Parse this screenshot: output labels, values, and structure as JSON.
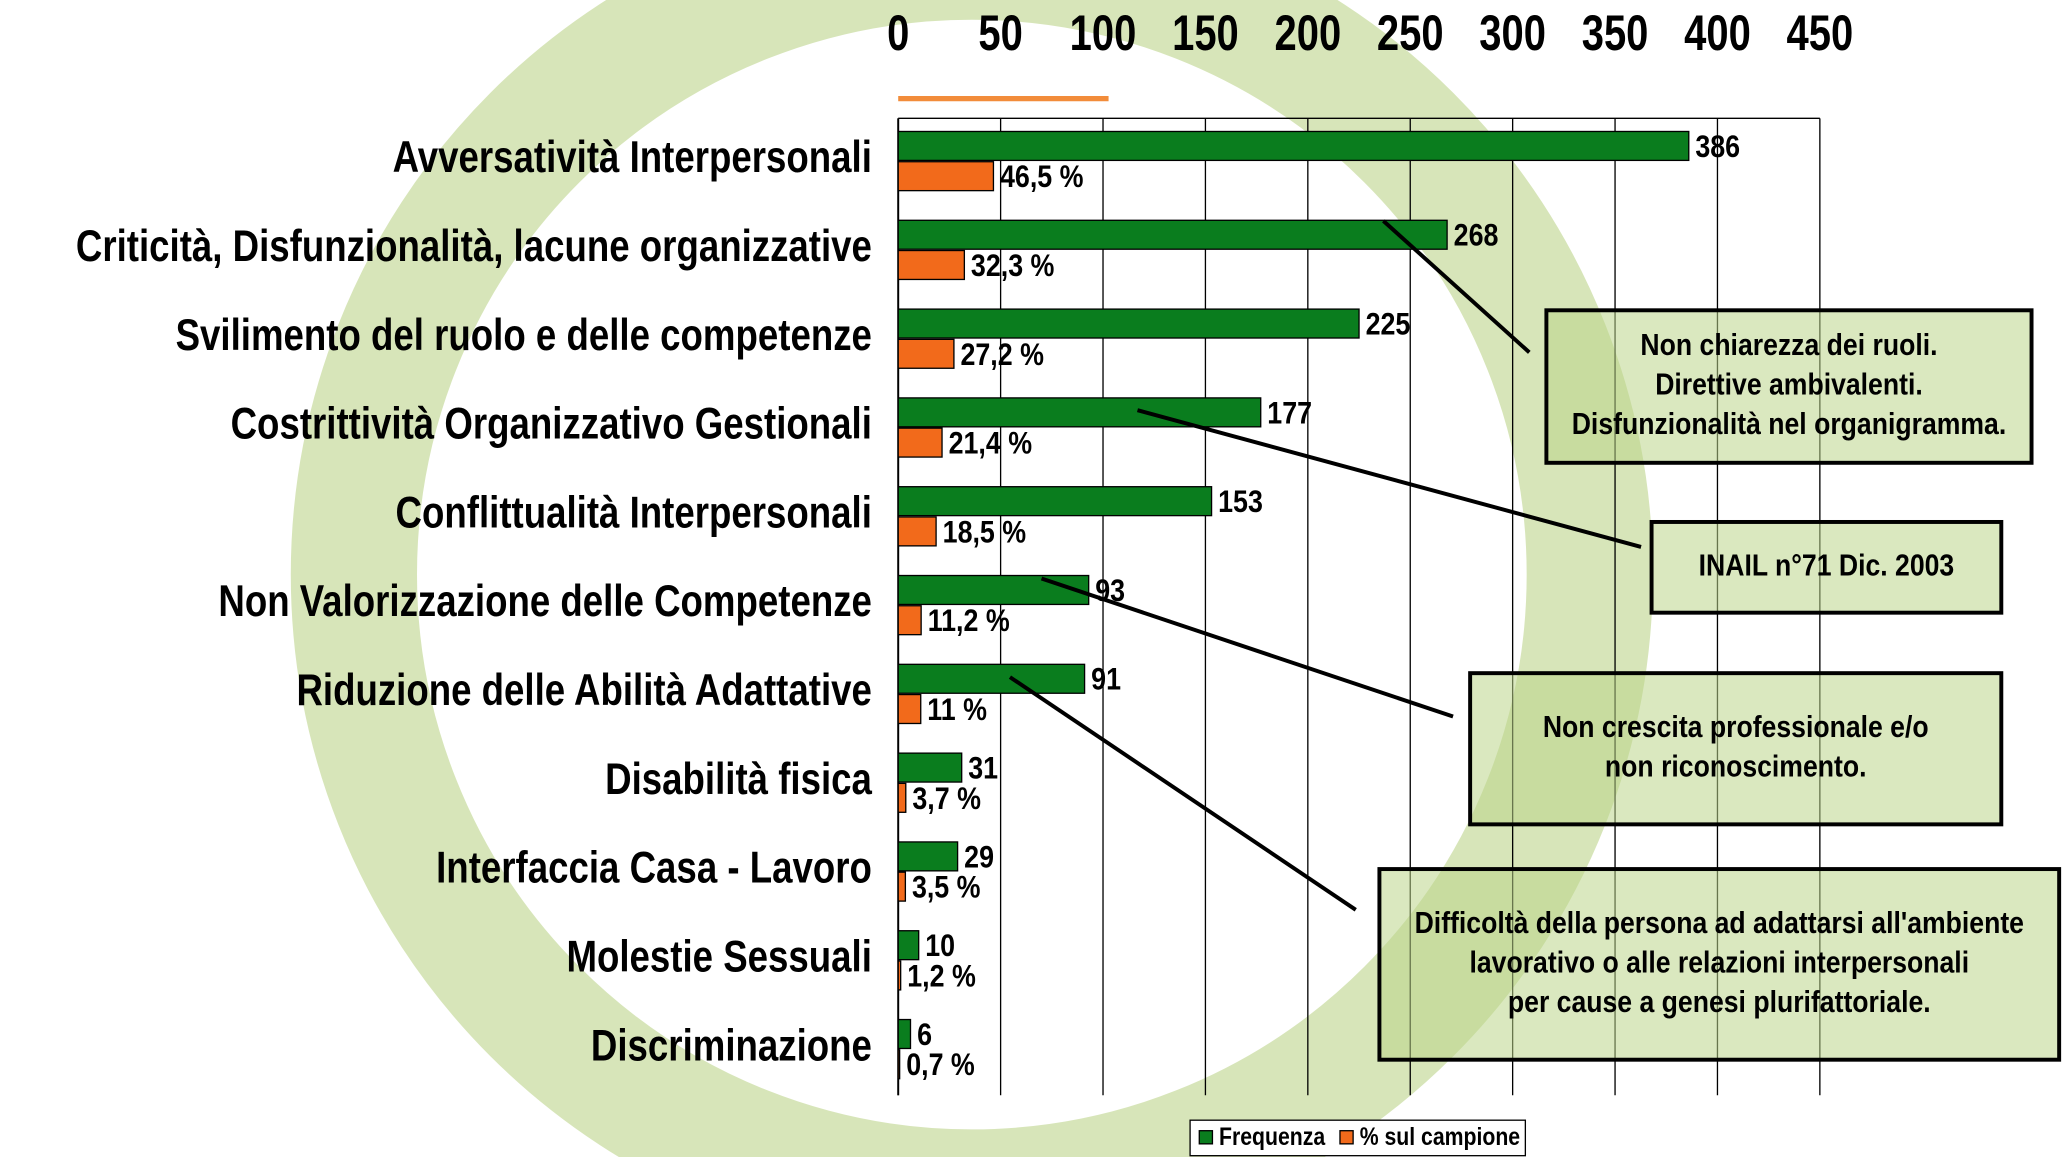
{
  "chart_data": {
    "type": "bar",
    "orientation": "horizontal",
    "categories": [
      "Avversatività Interpersonali",
      "Criticità, Disfunzionalità, lacune organizzative",
      "Svilimento del ruolo e delle competenze",
      "Costrittività Organizzativo Gestionali",
      "Conflittualità Interpersonali",
      "Non Valorizzazione delle Competenze",
      "Riduzione delle Abilità Adattative",
      "Disabilità fisica",
      "Interfaccia Casa - Lavoro",
      "Molestie Sessuali",
      "Discriminazione"
    ],
    "series": [
      {
        "name": "Frequenza",
        "color": "#0a7d1e",
        "values": [
          386,
          268,
          225,
          177,
          153,
          93,
          91,
          31,
          29,
          10,
          6
        ]
      },
      {
        "name": "% sul campione",
        "color": "#f26a1b",
        "values": [
          46.5,
          32.3,
          27.2,
          21.4,
          18.5,
          11.2,
          11,
          3.7,
          3.5,
          1.2,
          0.7
        ],
        "value_labels": [
          "46,5 %",
          "32,3 %",
          "27,2 %",
          "21,4 %",
          "18,5 %",
          "11,2 %",
          "11 %",
          "3,7 %",
          "3,5 %",
          "1,2 %",
          "0,7 %"
        ]
      }
    ],
    "xlim": [
      0,
      450
    ],
    "xticks": [
      0,
      50,
      100,
      150,
      200,
      250,
      300,
      350,
      400,
      450
    ],
    "grid": true,
    "legend": "bottom",
    "annotations": [
      {
        "lines": [
          "Non chiarezza dei ruoli.",
          "Direttive ambivalenti.",
          "Disfunzionalità nel organigramma."
        ]
      },
      {
        "lines": [
          "INAIL n°71 Dic. 2003"
        ]
      },
      {
        "lines": [
          "Non crescita professionale e/o",
          "non riconoscimento."
        ]
      },
      {
        "lines": [
          "Difficoltà della persona ad adattarsi all'ambiente",
          "lavorativo o alle relazioni interpersonali",
          "per cause a genesi plurifattoriale."
        ]
      }
    ]
  }
}
